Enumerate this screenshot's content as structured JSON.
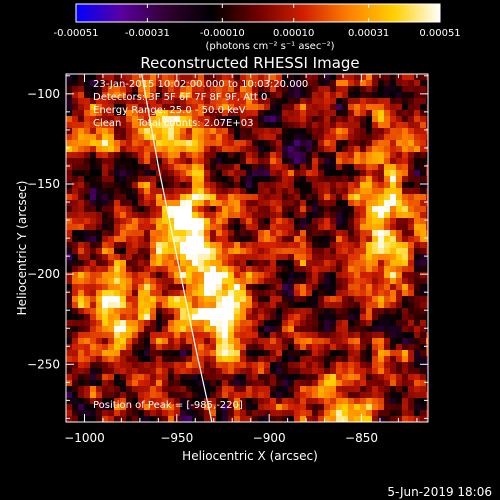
{
  "colorbar": {
    "tick_labels": [
      "-0.00051",
      "-0.00031",
      "-0.00010",
      "0.00010",
      "0.00031",
      "0.00051"
    ],
    "tick_values": [
      -0.00051,
      -0.00031,
      -0.0001,
      0.0001,
      0.00031,
      0.00051
    ],
    "range": [
      -0.00051,
      0.00051
    ],
    "unit_label": "(photons cm⁻² s⁻¹ asec⁻²)",
    "stops": [
      "#0000ff",
      "#5a00a0",
      "#300030",
      "#000000",
      "#700000",
      "#d02000",
      "#ff8000",
      "#ffd000",
      "#ffffff"
    ]
  },
  "chart_data": {
    "type": "heatmap",
    "title": "Reconstructed RHESSI Image",
    "xlabel": "Heliocentric X (arcsec)",
    "ylabel": "Heliocentric Y (arcsec)",
    "xlim": [
      -1010,
      -814
    ],
    "ylim": [
      -282,
      -89
    ],
    "x_ticks": [
      -1000,
      -950,
      -900,
      -850
    ],
    "y_ticks": [
      -100,
      -150,
      -200,
      -250
    ],
    "colormap": "rhessi-diverging (blue-purple-black-red-yellow-white)",
    "sources": [
      {
        "x": -985,
        "y": -220,
        "peak": 0.00051,
        "sx": 14,
        "sy": 18
      },
      {
        "x": -947,
        "y": -175,
        "peak": 0.00042,
        "sx": 13,
        "sy": 24
      },
      {
        "x": -927,
        "y": -213,
        "peak": 0.00046,
        "sx": 13,
        "sy": 22
      },
      {
        "x": -838,
        "y": -165,
        "peak": 0.00042,
        "sx": 10,
        "sy": 32
      },
      {
        "x": -860,
        "y": -270,
        "peak": 0.00025,
        "sx": 14,
        "sy": 16
      },
      {
        "x": -955,
        "y": -118,
        "peak": 0.00028,
        "sx": 18,
        "sy": 14
      },
      {
        "x": -998,
        "y": -125,
        "peak": 0.00022,
        "sx": 12,
        "sy": 12
      }
    ],
    "annotations": [
      "23-Jan-2015 10:02:00.000 to 10:03:20.000",
      "Detectors: 3F 5F 6F 7F 8F 9F, Att 0",
      "Energy Range: 25.0 - 50.0 keV",
      "Clean     Total counts: 2.07E+03",
      "Position of Peak = [-985,-220]"
    ],
    "limb_curve": [
      [
        -969,
        -89
      ],
      [
        -960,
        -140
      ],
      [
        -950,
        -190
      ],
      [
        -940,
        -240
      ],
      [
        -931,
        -282
      ]
    ]
  },
  "footer": {
    "date": "5-Jun-2019 18:06"
  }
}
